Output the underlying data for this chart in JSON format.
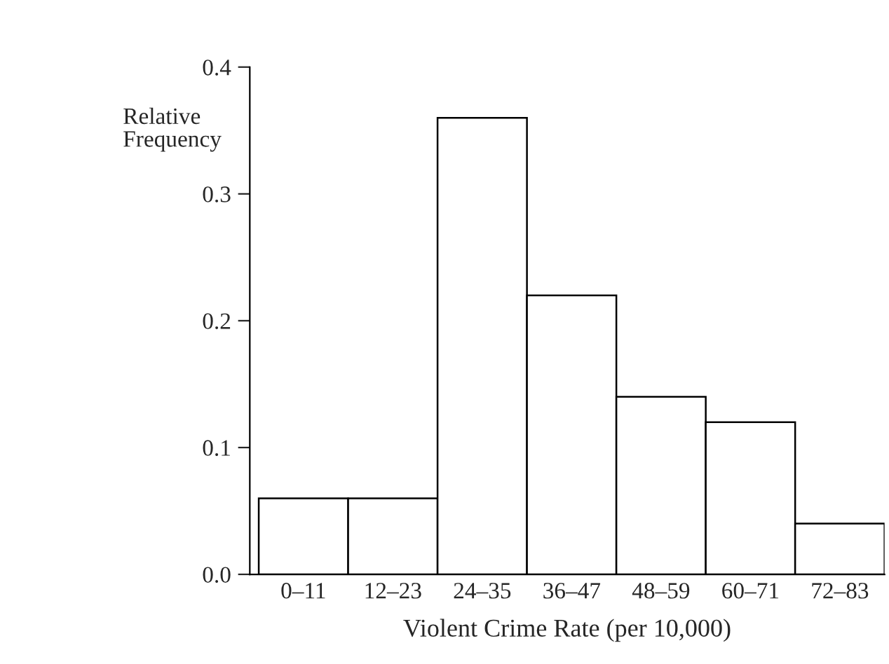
{
  "chart_data": {
    "type": "bar",
    "xlabel": "Violent Crime Rate (per 10,000)",
    "ylabel": "Relative\nFrequency",
    "categories": [
      "0–11",
      "12–23",
      "24–35",
      "36–47",
      "48–59",
      "60–71",
      "72–83"
    ],
    "values": [
      0.06,
      0.06,
      0.36,
      0.22,
      0.14,
      0.12,
      0.04
    ],
    "color": "#ffffff",
    "ylim": [
      0,
      0.4
    ],
    "yticks": [
      {
        "value": 0,
        "label": "0.0"
      },
      {
        "value": 0.1,
        "label": "0.1"
      },
      {
        "value": 0.2,
        "label": "0.2"
      },
      {
        "value": 0.3,
        "label": "0.3"
      },
      {
        "value": 0.4,
        "label": "0.4"
      }
    ],
    "grid": false
  }
}
